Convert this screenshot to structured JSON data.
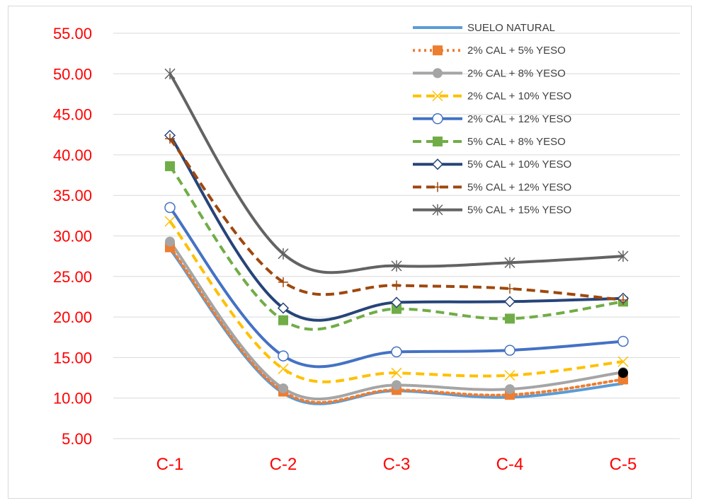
{
  "chart_data": {
    "type": "line",
    "title": "",
    "xlabel": "",
    "ylabel": "",
    "categories": [
      "C-1",
      "C-2",
      "C-3",
      "C-4",
      "C-5"
    ],
    "ylim": [
      5,
      55
    ],
    "yticks": [
      "5.00",
      "10.00",
      "15.00",
      "20.00",
      "25.00",
      "30.00",
      "35.00",
      "40.00",
      "45.00",
      "50.00",
      "55.00"
    ],
    "grid": true,
    "legend_position": "top-right",
    "axis_label_color": "#ff0000",
    "series": [
      {
        "name": "SUELO NATURAL",
        "values": [
          28.4,
          10.6,
          10.9,
          10.1,
          11.8
        ],
        "color": "#5b9bd5",
        "dash": "solid",
        "marker": "none"
      },
      {
        "name": "2% CAL + 5% YESO",
        "values": [
          28.6,
          10.8,
          11.0,
          10.4,
          12.3
        ],
        "color": "#ed7d31",
        "dash": "dotted",
        "marker": "square"
      },
      {
        "name": "2% CAL + 8% YESO",
        "values": [
          29.3,
          11.2,
          11.6,
          11.1,
          13.2
        ],
        "color": "#a5a5a5",
        "dash": "solid",
        "marker": "circle"
      },
      {
        "name": "2% CAL + 10% YESO",
        "values": [
          31.8,
          13.6,
          13.1,
          12.8,
          14.5
        ],
        "color": "#ffc000",
        "dash": "dashed",
        "marker": "x"
      },
      {
        "name": "2% CAL + 12% YESO",
        "values": [
          33.5,
          15.2,
          15.7,
          15.9,
          17.0
        ],
        "color": "#4472c4",
        "dash": "solid",
        "marker": "open-circle"
      },
      {
        "name": "5% CAL + 8% YESO",
        "values": [
          38.6,
          19.6,
          21.0,
          19.8,
          21.9
        ],
        "color": "#70ad47",
        "dash": "dashed",
        "marker": "square"
      },
      {
        "name": "5% CAL + 10% YESO",
        "values": [
          42.4,
          21.1,
          21.8,
          21.9,
          22.3
        ],
        "color": "#264478",
        "dash": "solid",
        "marker": "diamond"
      },
      {
        "name": "5% CAL + 12% YESO",
        "values": [
          42.0,
          24.3,
          23.9,
          23.5,
          22.1
        ],
        "color": "#9e480e",
        "dash": "dashed",
        "marker": "plus"
      },
      {
        "name": "5% CAL + 15% YESO",
        "values": [
          50.0,
          27.8,
          26.3,
          26.7,
          27.5
        ],
        "color": "#636363",
        "dash": "solid",
        "marker": "star"
      }
    ],
    "annotations": [
      {
        "type": "point",
        "x": "C-5",
        "y": 13.1,
        "color": "#000000"
      }
    ]
  }
}
